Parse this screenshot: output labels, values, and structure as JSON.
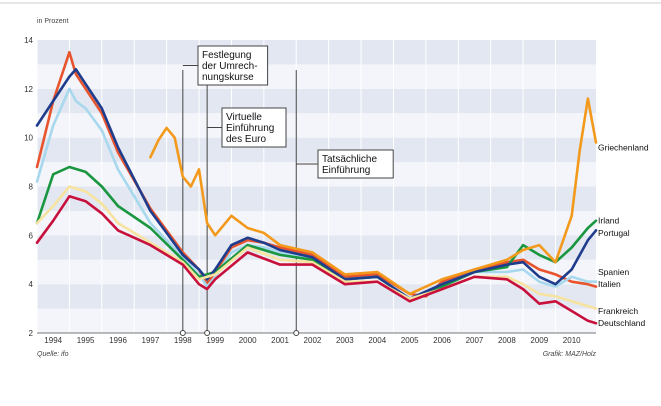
{
  "chart_data": {
    "type": "line",
    "ylabel": "in Prozent",
    "ylim": [
      2,
      14
    ],
    "yticks": [
      "2",
      "4",
      "6",
      "8",
      "10",
      "12",
      "14"
    ],
    "xlim": [
      1993.5,
      2010.75
    ],
    "xticks": [
      "1994",
      "1995",
      "1996",
      "1997",
      "1998",
      "1999",
      "2000",
      "2001",
      "2002",
      "2003",
      "2004",
      "2005",
      "2006",
      "2007",
      "2008",
      "2009",
      "2010"
    ],
    "source": "Quelle: ifo",
    "credit": "Grafik: MAZ/Holz",
    "annotations": [
      {
        "lines": [
          "Festlegung",
          "der Umrech-",
          "nungskurse"
        ],
        "x": 1998.0
      },
      {
        "lines": [
          "Virtuelle",
          "Einführung",
          "des Euro"
        ],
        "x": 1998.75
      },
      {
        "lines": [
          "Tatsächliche",
          "Einführung"
        ],
        "x": 2001.5
      }
    ],
    "series": [
      {
        "name": "Italien",
        "color": "#e8542e",
        "x": [
          1993.5,
          1994,
          1994.5,
          1994.7,
          1995,
          1995.5,
          1996,
          1997,
          1998,
          1998.5,
          1998.75,
          1999,
          1999.5,
          2000,
          2000.5,
          2001,
          2002,
          2003,
          2004,
          2005,
          2005.5,
          2006,
          2007,
          2008,
          2008.5,
          2009,
          2009.5,
          2010,
          2010.5,
          2010.75
        ],
        "y": [
          8.8,
          11.5,
          13.5,
          12.6,
          12.0,
          11.0,
          9.4,
          7.1,
          5.3,
          4.6,
          4.0,
          4.5,
          5.5,
          5.8,
          5.7,
          5.5,
          5.2,
          4.3,
          4.4,
          3.6,
          3.5,
          4.1,
          4.6,
          4.9,
          5.0,
          4.6,
          4.4,
          4.1,
          4.0,
          3.9
        ]
      },
      {
        "name": "Spanien",
        "color": "#a8d8ee",
        "x": [
          1993.5,
          1994,
          1994.5,
          1994.7,
          1995,
          1995.5,
          1996,
          1997,
          1998,
          1998.5,
          1998.75,
          1999,
          1999.5,
          2000,
          2000.5,
          2001,
          2002,
          2003,
          2004,
          2005,
          2006,
          2007,
          2008,
          2008.5,
          2009,
          2009.5,
          2010,
          2010.5,
          2010.75
        ],
        "y": [
          8.2,
          10.5,
          12.0,
          11.5,
          11.2,
          10.3,
          8.7,
          6.5,
          5.1,
          4.4,
          3.9,
          4.3,
          5.3,
          5.6,
          5.5,
          5.3,
          5.0,
          4.2,
          4.3,
          3.4,
          4.0,
          4.5,
          4.5,
          4.6,
          4.1,
          3.9,
          4.3,
          4.1,
          4.1
        ]
      },
      {
        "name": "Irland",
        "color": "#1a9640",
        "x": [
          1993.5,
          1994,
          1994.5,
          1995,
          1995.5,
          1996,
          1997,
          1998,
          1998.5,
          1999,
          2000,
          2001,
          2002,
          2003,
          2004,
          2005,
          2006,
          2007,
          2008,
          2008.5,
          2009,
          2009.5,
          2010,
          2010.5,
          2010.75
        ],
        "y": [
          6.5,
          8.5,
          8.8,
          8.6,
          8.0,
          7.2,
          6.3,
          5.0,
          4.3,
          4.5,
          5.6,
          5.2,
          5.0,
          4.2,
          4.3,
          3.4,
          3.9,
          4.5,
          4.7,
          5.6,
          5.2,
          4.9,
          5.5,
          6.3,
          6.6
        ]
      },
      {
        "name": "Portugal",
        "color": "#1f3d8c",
        "x": [
          1993.5,
          1994,
          1994.5,
          1994.7,
          1995,
          1995.5,
          1996,
          1997,
          1998,
          1998.5,
          1998.75,
          1999,
          1999.5,
          2000,
          2000.5,
          2001,
          2002,
          2003,
          2004,
          2005,
          2006,
          2007,
          2008,
          2008.5,
          2009,
          2009.5,
          2010,
          2010.5,
          2010.75
        ],
        "y": [
          10.5,
          11.5,
          12.5,
          12.8,
          12.2,
          11.2,
          9.6,
          7.0,
          5.2,
          4.6,
          4.2,
          4.6,
          5.6,
          5.9,
          5.7,
          5.4,
          5.1,
          4.2,
          4.3,
          3.4,
          4.0,
          4.5,
          4.8,
          4.9,
          4.3,
          4.0,
          4.6,
          5.8,
          6.2
        ]
      },
      {
        "name": "Griechenland",
        "color": "#f39a1c",
        "x": [
          1997,
          1997.25,
          1997.5,
          1997.75,
          1998,
          1998.25,
          1998.5,
          1998.75,
          1999,
          1999.5,
          2000,
          2000.5,
          2001,
          2002,
          2003,
          2004,
          2005,
          2006,
          2007,
          2008,
          2008.5,
          2009,
          2009.5,
          2010,
          2010.25,
          2010.5,
          2010.75
        ],
        "y": [
          9.2,
          9.9,
          10.4,
          10.0,
          8.4,
          8.0,
          8.7,
          6.5,
          6.0,
          6.8,
          6.3,
          6.1,
          5.6,
          5.3,
          4.4,
          4.5,
          3.6,
          4.2,
          4.6,
          5.0,
          5.4,
          5.6,
          4.9,
          6.8,
          9.5,
          11.6,
          9.8
        ]
      },
      {
        "name": "Frankreich",
        "color": "#f7e3a0",
        "x": [
          1993.5,
          1994,
          1994.5,
          1995,
          1995.5,
          1996,
          1997,
          1998,
          1998.5,
          1999,
          2000,
          2001,
          2002,
          2003,
          2004,
          2005,
          2006,
          2007,
          2008,
          2008.5,
          2009,
          2009.5,
          2010,
          2010.5,
          2010.75
        ],
        "y": [
          6.5,
          7.2,
          8.0,
          7.8,
          7.3,
          6.5,
          5.7,
          4.9,
          4.2,
          4.4,
          5.5,
          5.0,
          4.9,
          4.1,
          4.1,
          3.4,
          3.8,
          4.3,
          4.3,
          4.0,
          3.6,
          3.5,
          3.3,
          3.1,
          3.0
        ]
      },
      {
        "name": "Deutschland",
        "color": "#c8103c",
        "x": [
          1993.5,
          1994,
          1994.5,
          1995,
          1995.5,
          1996,
          1997,
          1998,
          1998.5,
          1998.75,
          1999,
          2000,
          2001,
          2002,
          2003,
          2004,
          2005,
          2006,
          2007,
          2008,
          2008.5,
          2009,
          2009.5,
          2010,
          2010.5,
          2010.75
        ],
        "y": [
          5.7,
          6.6,
          7.6,
          7.4,
          6.9,
          6.2,
          5.6,
          4.8,
          4.0,
          3.8,
          4.2,
          5.3,
          4.8,
          4.8,
          4.0,
          4.1,
          3.3,
          3.8,
          4.3,
          4.2,
          3.8,
          3.2,
          3.3,
          2.9,
          2.5,
          2.4
        ]
      }
    ],
    "legend": [
      {
        "text": "Griechenland",
        "y": 9.6
      },
      {
        "text": "Irland",
        "y": 6.6
      },
      {
        "text": "Portugal",
        "y": 6.1
      },
      {
        "text": "Spanien",
        "y": 4.5
      },
      {
        "text": "Italien",
        "y": 4.0
      },
      {
        "text": "Frankreich",
        "y": 2.9
      },
      {
        "text": "Deutschland",
        "y": 2.4
      }
    ]
  }
}
